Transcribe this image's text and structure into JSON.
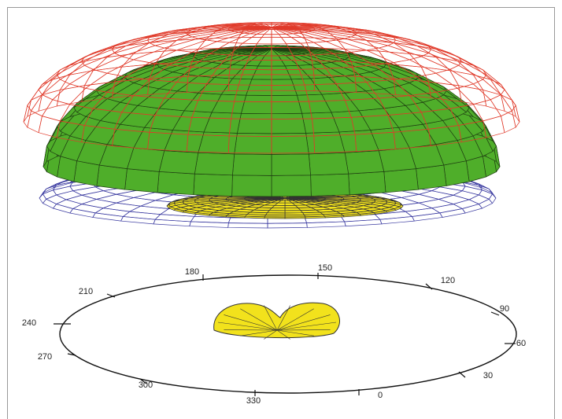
{
  "polar_axis": {
    "angle_labels": [
      "180",
      "150",
      "120",
      "90",
      "60",
      "30",
      "0",
      "330",
      "300",
      "270",
      "240",
      "210"
    ]
  }
}
